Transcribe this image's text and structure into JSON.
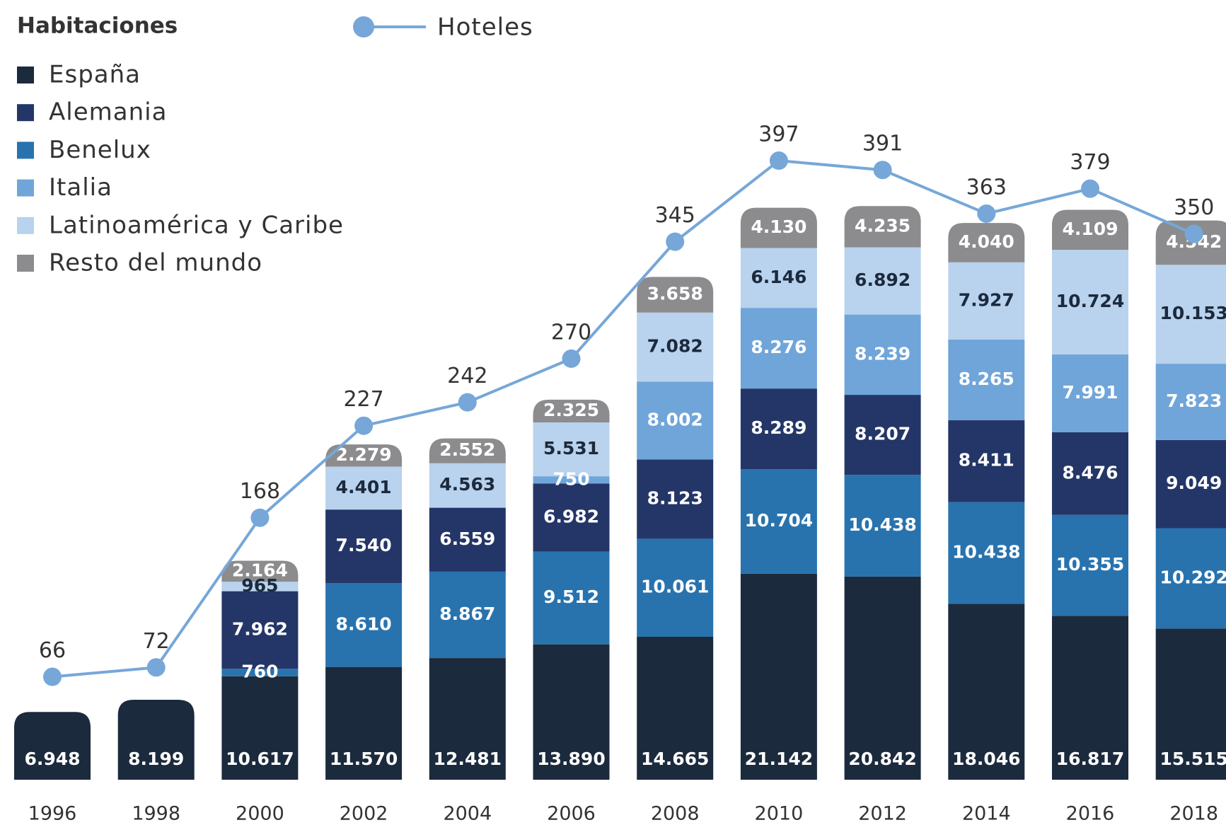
{
  "chart_data": {
    "type": "bar",
    "stacked": true,
    "legend_title": "Habitaciones",
    "categories": [
      "1996",
      "1998",
      "2000",
      "2002",
      "2004",
      "2006",
      "2008",
      "2010",
      "2012",
      "2014",
      "2016",
      "2018"
    ],
    "ylim": [
      0,
      80000
    ],
    "y2lim": [
      0,
      500
    ],
    "series": [
      {
        "name": "España",
        "color": "#1b2a3d",
        "values": [
          6948,
          8199,
          10617,
          11570,
          12481,
          13890,
          14665,
          21142,
          20842,
          18046,
          16817,
          15515
        ],
        "value_labels": [
          "6.948",
          "8.199",
          "10.617",
          "11.570",
          "12.481",
          "13.890",
          "14.665",
          "21.142",
          "20.842",
          "18.046",
          "16.817",
          "15.515"
        ]
      },
      {
        "name": "Alemania",
        "color": "#243668",
        "values": [
          null,
          null,
          7962,
          7540,
          6559,
          6982,
          8123,
          8289,
          8207,
          8411,
          8476,
          9049
        ],
        "value_labels": [
          null,
          null,
          "7.962",
          "7.540",
          "6.559",
          "6.982",
          "8.123",
          "8.289",
          "8.207",
          "8.411",
          "8.476",
          "9.049"
        ]
      },
      {
        "name": "Benelux",
        "color": "#2873ae",
        "values": [
          null,
          null,
          760,
          8610,
          8867,
          9512,
          10061,
          10704,
          10438,
          10438,
          10355,
          10292
        ],
        "value_labels": [
          null,
          null,
          "760",
          "8.610",
          "8.867",
          "9.512",
          "10.061",
          "10.704",
          "10.438",
          "10.438",
          "10.355",
          "10.292"
        ]
      },
      {
        "name": "Italia",
        "color": "#70a5d9",
        "values": [
          null,
          null,
          null,
          null,
          null,
          750,
          8002,
          8276,
          8239,
          8265,
          7991,
          7823
        ],
        "value_labels": [
          null,
          null,
          null,
          null,
          null,
          "750",
          "8.002",
          "8.276",
          "8.239",
          "8.265",
          "7.991",
          "7.823"
        ]
      },
      {
        "name": "Latinoamérica y Caribe",
        "color": "#b9d2ed",
        "values": [
          null,
          null,
          965,
          4401,
          4563,
          5531,
          7082,
          6146,
          6892,
          7927,
          10724,
          10153
        ],
        "value_labels": [
          null,
          null,
          "965",
          "4.401",
          "4.563",
          "5.531",
          "7.082",
          "6.146",
          "6.892",
          "7.927",
          "10.724",
          "10.153"
        ]
      },
      {
        "name": "Resto del mundo",
        "color": "#8c8c8e",
        "values": [
          null,
          null,
          2164,
          2279,
          2552,
          2325,
          3658,
          4130,
          4235,
          4040,
          4109,
          4542
        ],
        "value_labels": [
          null,
          null,
          "2.164",
          "2.279",
          "2.552",
          "2.325",
          "3.658",
          "4.130",
          "4.235",
          "4.040",
          "4.109",
          "4.542"
        ]
      },
      {
        "name": "Hoteles",
        "color": "#76a7d8",
        "type": "line",
        "axis": "y2",
        "values": [
          66,
          72,
          168,
          227,
          242,
          270,
          345,
          397,
          391,
          363,
          379,
          350
        ]
      }
    ]
  }
}
